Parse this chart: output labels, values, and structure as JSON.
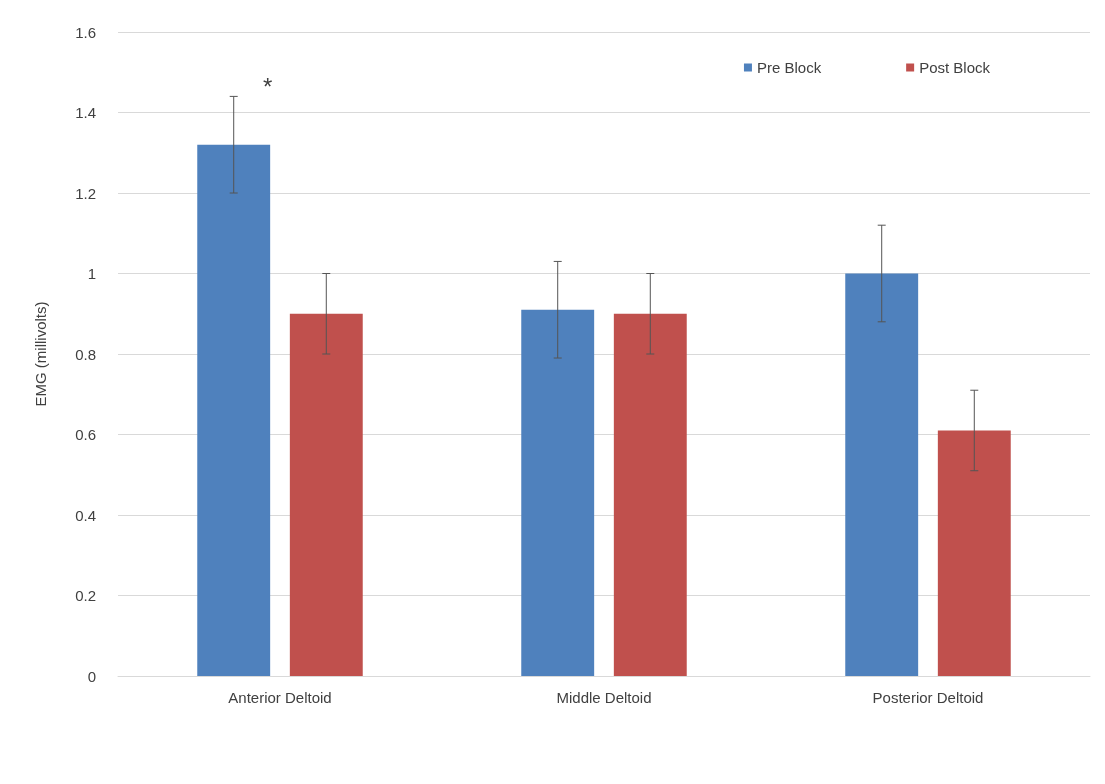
{
  "chart_data": {
    "type": "bar",
    "ylabel": "EMG (millivolts)",
    "categories": [
      "Anterior Deltoid",
      "Middle Deltoid",
      "Posterior Deltoid"
    ],
    "series": [
      {
        "name": "Pre Block",
        "color": "#4f81bd",
        "values": [
          1.32,
          0.91,
          1.0
        ],
        "errors": [
          0.12,
          0.12,
          0.12
        ]
      },
      {
        "name": "Post Block",
        "color": "#c0504d",
        "values": [
          0.9,
          0.9,
          0.61
        ],
        "errors": [
          0.1,
          0.1,
          0.1
        ]
      }
    ],
    "ylim": [
      0,
      1.6
    ],
    "yticks": [
      0,
      0.2,
      0.4,
      0.6,
      0.8,
      1,
      1.2,
      1.4,
      1.6
    ],
    "grid": "y",
    "legend": "top right",
    "annotations": [
      "*"
    ]
  }
}
